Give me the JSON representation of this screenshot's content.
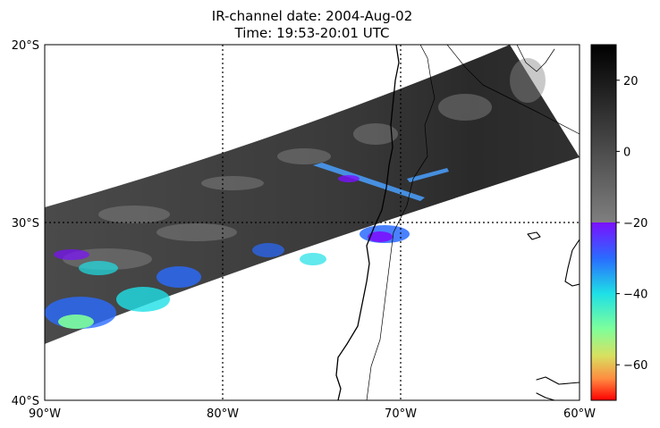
{
  "title": {
    "line1": "IR-channel date: 2004-Aug-02",
    "line2": "Time: 19:53-20:01 UTC"
  },
  "map": {
    "lon_range": [
      -90,
      -60
    ],
    "lat_range": [
      -40,
      -20
    ],
    "lon_ticks": [
      {
        "value": -90,
        "label": "90°W"
      },
      {
        "value": -80,
        "label": "80°W"
      },
      {
        "value": -70,
        "label": "70°W"
      },
      {
        "value": -60,
        "label": "60°W"
      }
    ],
    "lat_ticks": [
      {
        "value": -20,
        "label": "20°S"
      },
      {
        "value": -30,
        "label": "30°S"
      },
      {
        "value": -40,
        "label": "40°S"
      }
    ],
    "gridlines": "dotted",
    "swath_label": "satellite IR swath"
  },
  "colorbar": {
    "range": [
      -70,
      30
    ],
    "ticks": [
      {
        "value": 20,
        "label": "20"
      },
      {
        "value": 0,
        "label": "0"
      },
      {
        "value": -20,
        "label": "−20"
      },
      {
        "value": -40,
        "label": "−40"
      },
      {
        "value": -60,
        "label": "−60"
      }
    ],
    "gray_segment": [
      -20,
      30
    ],
    "color_segment": [
      -70,
      -20
    ],
    "colors": {
      "gray_top": "#000000",
      "gray_bottom": "#7f7f7f",
      "violet": "#7a10ff",
      "blue": "#2a6bff",
      "cyan": "#1ee0e6",
      "green": "#7fff9a",
      "yellow": "#d8e060",
      "orange": "#ff8a40",
      "red": "#ff0000"
    }
  }
}
